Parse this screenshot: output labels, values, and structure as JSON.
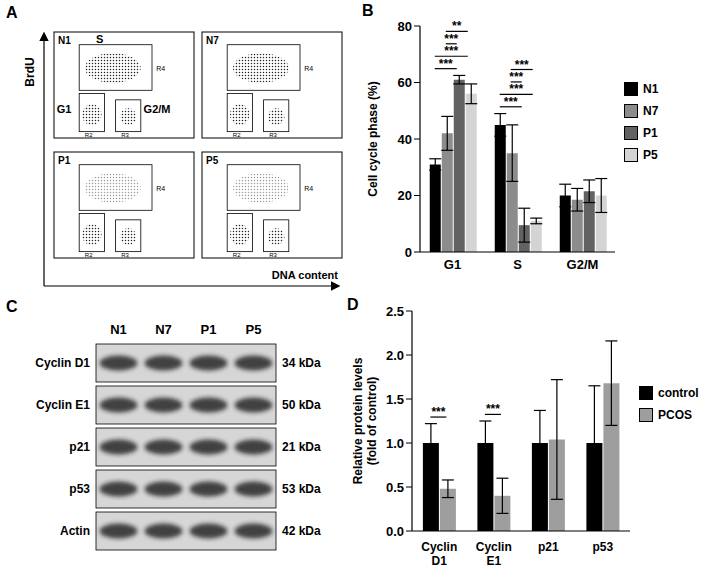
{
  "chart_data": [
    {
      "panel": "B",
      "type": "bar",
      "categories": [
        "G1",
        "S",
        "G2/M"
      ],
      "y_label": "Cell cycle phase (%)",
      "ylim": [
        0,
        80
      ],
      "yticks": [
        0,
        20,
        40,
        60,
        80
      ],
      "legend": "right",
      "series": [
        {
          "name": "N1",
          "color": "#000000",
          "values": [
            31,
            45,
            20
          ],
          "errors": [
            2,
            4,
            4
          ]
        },
        {
          "name": "N7",
          "color": "#8c8c8c",
          "values": [
            42,
            35,
            18.5
          ],
          "errors": [
            6,
            10,
            4
          ]
        },
        {
          "name": "P1",
          "color": "#626262",
          "values": [
            61,
            9.5,
            21.5
          ],
          "errors": [
            1.5,
            6,
            4
          ]
        },
        {
          "name": "P5",
          "color": "#d4d4d4",
          "values": [
            56,
            11,
            20
          ],
          "errors": [
            3.5,
            1,
            6
          ]
        }
      ],
      "significance": [
        {
          "category": "G1",
          "from": "N1",
          "to": "P1",
          "label": "***"
        },
        {
          "category": "G1",
          "from": "N1",
          "to": "P5",
          "label": "***"
        },
        {
          "category": "G1",
          "from": "N7",
          "to": "P1",
          "label": "***"
        },
        {
          "category": "G1",
          "from": "N7",
          "to": "P5",
          "label": "**"
        },
        {
          "category": "S",
          "from": "N1",
          "to": "P1",
          "label": "***"
        },
        {
          "category": "S",
          "from": "N1",
          "to": "P5",
          "label": "***"
        },
        {
          "category": "S",
          "from": "N7",
          "to": "P1",
          "label": "***"
        },
        {
          "category": "S",
          "from": "N7",
          "to": "P5",
          "label": "***"
        }
      ]
    },
    {
      "panel": "D",
      "type": "bar",
      "categories": [
        "Cyclin D1",
        "Cyclin E1",
        "p21",
        "p53"
      ],
      "y_label": "Relative protein levels (fold of control)",
      "ylim": [
        0,
        2.5
      ],
      "yticks": [
        {
          "value": 0,
          "label": "0.0"
        },
        0.5,
        {
          "value": 1,
          "label": "1.0"
        },
        1.5,
        {
          "value": 2,
          "label": "2.0"
        },
        2.5
      ],
      "legend": "right",
      "series": [
        {
          "name": "control",
          "color": "#000000",
          "values": [
            1,
            1,
            1,
            1
          ],
          "errors": [
            0.22,
            0.25,
            0.37,
            0.65
          ]
        },
        {
          "name": "PCOS",
          "color": "#9e9e9e",
          "values": [
            0.48,
            0.4,
            1.04,
            1.68
          ],
          "errors": [
            0.1,
            0.2,
            0.68,
            0.48
          ]
        }
      ],
      "significance": [
        {
          "category": "Cyclin D1",
          "from": "control",
          "to": "PCOS",
          "label": "***"
        },
        {
          "category": "Cyclin E1",
          "from": "control",
          "to": "PCOS",
          "label": "***"
        }
      ]
    }
  ],
  "panel_a": {
    "panel": "A",
    "y_label": "BrdU",
    "x_label": "DNA content",
    "region_labels": [
      "R4",
      "R2",
      "R3"
    ],
    "plots": [
      {
        "name": "N1",
        "gate_labels": [
          "S",
          "G1",
          "G2/M"
        ]
      },
      {
        "name": "N7"
      },
      {
        "name": "P1"
      },
      {
        "name": "P5"
      }
    ]
  },
  "panel_c": {
    "panel": "C",
    "lanes": [
      "N1",
      "N7",
      "P1",
      "P5"
    ],
    "bands": [
      {
        "name": "Cyclin D1",
        "size": "34 kDa"
      },
      {
        "name": "Cyclin E1",
        "size": "50 kDa"
      },
      {
        "name": "p21",
        "size": "21 kDa"
      },
      {
        "name": "p53",
        "size": "53 kDa"
      },
      {
        "name": "Actin",
        "size": "42 kDa"
      }
    ]
  }
}
